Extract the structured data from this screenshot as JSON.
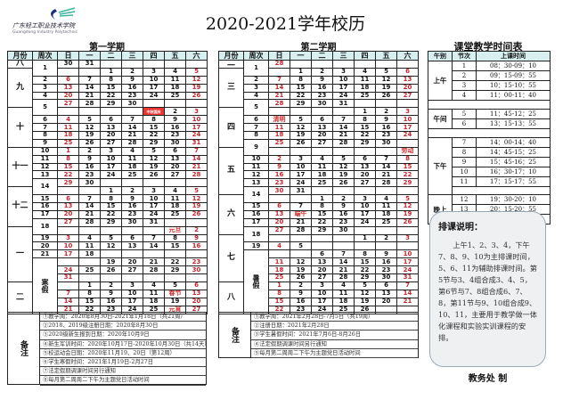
{
  "page_title": "2020-2021学年校历",
  "logo": {
    "cn": "广东轻工职业技术学院",
    "en": "Guangdong Industry Polytechnic"
  },
  "headers": [
    "月份",
    "周次",
    "日",
    "一",
    "二",
    "三",
    "四",
    "五",
    "六"
  ],
  "semesters": [
    {
      "title": "第一学期",
      "months": [
        {
          "label": "八",
          "span": 1
        },
        {
          "label": "九",
          "span": 5
        },
        {
          "label": "十",
          "span": 5
        },
        {
          "label": "十一",
          "span": 5
        },
        {
          "label": "十二",
          "span": 5
        },
        {
          "label": "一",
          "span": 7
        },
        {
          "label": "二",
          "span": 4
        }
      ],
      "weeks": [
        {
          "label": "1",
          "span": 2
        },
        {
          "label": "2",
          "span": 1
        },
        {
          "label": "3",
          "span": 1
        },
        {
          "label": "4",
          "span": 1
        },
        {
          "label": "5",
          "span": 2
        },
        {
          "label": "6",
          "span": 1
        },
        {
          "label": "7",
          "span": 1
        },
        {
          "label": "8",
          "span": 1
        },
        {
          "label": "9",
          "span": 1
        },
        {
          "label": "10",
          "span": 1
        },
        {
          "label": "11",
          "span": 1
        },
        {
          "label": "12",
          "span": 1
        },
        {
          "label": "13",
          "span": 1
        },
        {
          "label": "14",
          "span": 2
        },
        {
          "label": "15",
          "span": 1
        },
        {
          "label": "16",
          "span": 1
        },
        {
          "label": "17",
          "span": 1
        },
        {
          "label": "18",
          "span": 2
        },
        {
          "label": "19",
          "span": 1
        },
        {
          "label": "20",
          "span": 1
        },
        {
          "label": "21",
          "span": 1
        },
        {
          "label": "寒假",
          "span": 7
        }
      ],
      "rows": [
        [
          "30",
          "31",
          "",
          "",
          "",
          "",
          ""
        ],
        [
          "",
          "",
          "1",
          "2",
          "3",
          "4",
          "5"
        ],
        [
          "6",
          "7",
          "8",
          "9",
          "10",
          "11",
          "12"
        ],
        [
          "13",
          "14",
          "15",
          "16",
          "17",
          "18",
          "19"
        ],
        [
          "20",
          "21",
          "22",
          "23",
          "24",
          "25",
          "26"
        ],
        [
          "27",
          "28",
          "29",
          "30",
          "",
          "",
          ""
        ],
        [
          "",
          "",
          "",
          "",
          "中秋国庆",
          "2",
          "3"
        ],
        [
          "4",
          "5",
          "6",
          "7",
          "8",
          "9",
          "10"
        ],
        [
          "11",
          "12",
          "13",
          "14",
          "15",
          "16",
          "17"
        ],
        [
          "18",
          "19",
          "20",
          "21",
          "22",
          "23",
          "24"
        ],
        [
          "25",
          "26",
          "27",
          "28",
          "29",
          "30",
          "31"
        ],
        [
          "1",
          "2",
          "3",
          "4",
          "5",
          "6",
          "7"
        ],
        [
          "8",
          "9",
          "10",
          "11",
          "12",
          "13",
          "14"
        ],
        [
          "15",
          "16",
          "17",
          "18",
          "19",
          "20",
          "21"
        ],
        [
          "22",
          "23",
          "24",
          "25",
          "26",
          "27",
          "28"
        ],
        [
          "29",
          "30",
          "",
          "",
          "",
          "",
          ""
        ],
        [
          "",
          "",
          "1",
          "2",
          "3",
          "4",
          "5"
        ],
        [
          "6",
          "7",
          "8",
          "9",
          "10",
          "11",
          "12"
        ],
        [
          "13",
          "14",
          "15",
          "16",
          "17",
          "18",
          "19"
        ],
        [
          "20",
          "21",
          "22",
          "23",
          "24",
          "25",
          "26"
        ],
        [
          "27",
          "28",
          "29",
          "30",
          "31",
          "",
          ""
        ],
        [
          "",
          "",
          "",
          "",
          "",
          "元旦",
          "2"
        ],
        [
          "3",
          "4",
          "5",
          "6",
          "7",
          "8",
          "9"
        ],
        [
          "10",
          "11",
          "12",
          "13",
          "14",
          "15",
          "16"
        ],
        [
          "17",
          "18",
          "",
          "",
          "",
          "",
          ""
        ],
        [
          "",
          "",
          "19",
          "20",
          "21",
          "22",
          "23"
        ],
        [
          "24",
          "25",
          "26",
          "27",
          "28",
          "29",
          "30"
        ],
        [
          "31",
          "",
          "",
          "",
          "",
          "",
          ""
        ],
        [
          "",
          "1",
          "2",
          "3",
          "4",
          "5",
          "6"
        ],
        [
          "7",
          "8",
          "9",
          "10",
          "11",
          "春节",
          "13"
        ],
        [
          "14",
          "15",
          "16",
          "17",
          "18",
          "19",
          "20"
        ],
        [
          "21",
          "22",
          "23",
          "24",
          "25",
          "元宵",
          "27"
        ]
      ],
      "notes_label": "备注",
      "notes": [
        "①教学周：2020年8月30日-2021年1月18日（共21周）",
        "②2018、2019级注册日期：2020年8月30日",
        "③2020级新生报到日期：2020年10月9日",
        "④新生军训时间：2020年10月17日-2020年10月30日（共14天）",
        "⑤校运动会日期：2020年11月19、20日（第12周）",
        "⑥学生寒假时间：2021年1月19日-2月27日",
        "⑦法定假期调课时间另行通知",
        "⑧每月第二周周二下午为主题党日活动时间"
      ]
    },
    {
      "title": "第二学期",
      "months": [
        {
          "label": "二",
          "span": 1
        },
        {
          "label": "三",
          "span": 5
        },
        {
          "label": "四",
          "span": 5
        },
        {
          "label": "五",
          "span": 6
        },
        {
          "label": "六",
          "span": 5
        },
        {
          "label": "七",
          "span": 6
        },
        {
          "label": "八",
          "span": 4
        }
      ],
      "weeks": [
        {
          "label": "1",
          "span": 2
        },
        {
          "label": "2",
          "span": 1
        },
        {
          "label": "3",
          "span": 1
        },
        {
          "label": "4",
          "span": 1
        },
        {
          "label": "5",
          "span": 2
        },
        {
          "label": "6",
          "span": 1
        },
        {
          "label": "7",
          "span": 1
        },
        {
          "label": "8",
          "span": 1
        },
        {
          "label": "9",
          "span": 2
        },
        {
          "label": "10",
          "span": 1
        },
        {
          "label": "11",
          "span": 1
        },
        {
          "label": "12",
          "span": 1
        },
        {
          "label": "13",
          "span": 1
        },
        {
          "label": "14",
          "span": 2
        },
        {
          "label": "15",
          "span": 1
        },
        {
          "label": "16",
          "span": 1
        },
        {
          "label": "17",
          "span": 1
        },
        {
          "label": "18",
          "span": 2
        },
        {
          "label": "19",
          "span": 1
        },
        {
          "label": "暑假",
          "span": 8
        }
      ],
      "rows": [
        [
          "28",
          "",
          "",
          "",
          "",
          "",
          ""
        ],
        [
          "",
          "1",
          "2",
          "3",
          "4",
          "5",
          "6"
        ],
        [
          "7",
          "8",
          "9",
          "10",
          "11",
          "12",
          "13"
        ],
        [
          "14",
          "15",
          "16",
          "17",
          "18",
          "19",
          "20"
        ],
        [
          "21",
          "22",
          "23",
          "24",
          "25",
          "26",
          "27"
        ],
        [
          "28",
          "29",
          "30",
          "31",
          "",
          "",
          ""
        ],
        [
          "",
          "",
          "",
          "",
          "1",
          "2",
          "3"
        ],
        [
          "清明",
          "5",
          "6",
          "7",
          "8",
          "9",
          "10"
        ],
        [
          "11",
          "12",
          "13",
          "14",
          "15",
          "16",
          "17"
        ],
        [
          "18",
          "19",
          "20",
          "21",
          "22",
          "23",
          "24"
        ],
        [
          "25",
          "26",
          "27",
          "28",
          "29",
          "30",
          ""
        ],
        [
          "",
          "",
          "",
          "",
          "",
          "",
          "劳动"
        ],
        [
          "2",
          "3",
          "4",
          "5",
          "6",
          "7",
          "8"
        ],
        [
          "9",
          "10",
          "11",
          "12",
          "13",
          "14",
          "15"
        ],
        [
          "16",
          "17",
          "18",
          "19",
          "20",
          "21",
          "22"
        ],
        [
          "23",
          "24",
          "25",
          "26",
          "27",
          "28",
          "29"
        ],
        [
          "30",
          "31",
          "",
          "",
          "",
          "",
          ""
        ],
        [
          "",
          "",
          "1",
          "2",
          "3",
          "4",
          "5"
        ],
        [
          "6",
          "7",
          "8",
          "9",
          "10",
          "11",
          "12"
        ],
        [
          "13",
          "端午",
          "15",
          "16",
          "17",
          "18",
          "19"
        ],
        [
          "20",
          "21",
          "22",
          "23",
          "24",
          "25",
          "26"
        ],
        [
          "27",
          "28",
          "29",
          "30",
          "",
          "",
          ""
        ],
        [
          "",
          "",
          "",
          "",
          "1",
          "2",
          "3"
        ],
        [
          "4",
          "5",
          "",
          "",
          "",
          "",
          ""
        ],
        [
          "",
          "",
          "6",
          "7",
          "8",
          "9",
          "10"
        ],
        [
          "11",
          "12",
          "13",
          "14",
          "15",
          "16",
          "17"
        ],
        [
          "18",
          "19",
          "20",
          "21",
          "22",
          "23",
          "24"
        ],
        [
          "25",
          "26",
          "27",
          "28",
          "29",
          "30",
          "31"
        ],
        [
          "1",
          "2",
          "3",
          "4",
          "5",
          "6",
          "7"
        ],
        [
          "8",
          "9",
          "10",
          "11",
          "12",
          "13",
          "14"
        ],
        [
          "15",
          "16",
          "17",
          "18",
          "19",
          "20",
          "21"
        ],
        [
          "22",
          "23",
          "24",
          "25",
          "26",
          "",
          ""
        ]
      ],
      "notes_label": "备注",
      "notes": [
        "①教学周：2021年2月28日-7月5日（共19周）",
        "②注册日期：2021年2月28日",
        "③学生暑假时间：2021年7月6日-8月26日",
        "④法定假期调课时间另行通知",
        "⑤每月第二周周二下午为主题党日活动时间"
      ]
    }
  ],
  "timetable": {
    "title": "课堂教学时间表",
    "headers": [
      "午别",
      "节次",
      "上课时间"
    ],
    "groups": [
      {
        "label": "上午",
        "periods": [
          [
            "1",
            "08：30-09：10"
          ],
          [
            "2",
            "09：15-09：55"
          ],
          [
            "3",
            "10：15-10：55"
          ],
          [
            "4",
            "11：00-11：40"
          ]
        ]
      },
      {
        "label": "午间",
        "periods": [
          [
            "5",
            "11：45-12：25"
          ],
          [
            "6",
            "13：15-13：55"
          ]
        ]
      },
      {
        "label": "下午",
        "periods": [
          [
            "7",
            "14：00-14：40"
          ],
          [
            "8",
            "14：45-15：25"
          ],
          [
            "9",
            "15：45-16：25"
          ],
          [
            "10",
            "16：30-17：10"
          ],
          [
            "11",
            "17：15-17：55"
          ]
        ]
      },
      {
        "label": "晚上",
        "periods": [
          [
            "12",
            "19：30-20：10"
          ],
          [
            "13",
            "20：15-20：55"
          ],
          [
            "14",
            "21：00-21：40"
          ]
        ]
      }
    ]
  },
  "explanation": {
    "title": "排课说明：",
    "body": "上午1、2、3、4，下午7、8、9、10为主排课时间，5、6、11为辅助排课时间。第5节与3、4组合成3、4、5，第6节与7、8组合成6、7、8，第11节与9、10组合成9、10、11，主要用于教学做一体化课程和实验实训课程的安排。"
  },
  "signature": "教务处 制",
  "colors": {
    "header_bg": "#d7efee",
    "weekend_red": "#c8242a",
    "holiday_red": "#e33333"
  }
}
